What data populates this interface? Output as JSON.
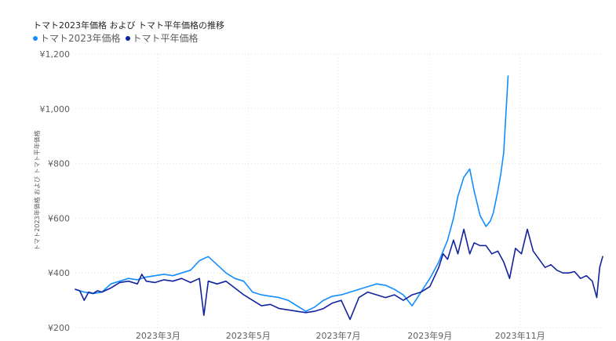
{
  "chart_data": {
    "type": "line",
    "title": "トマト2023年価格 および トマト平年価格の推移",
    "ylabel": "トマト2023年価格 および トマト平年価格",
    "xlabel": "",
    "ylim": [
      200,
      1200
    ],
    "yticks": [
      200,
      400,
      600,
      800,
      1000,
      1200
    ],
    "ytick_labels": [
      "¥200",
      "¥400",
      "¥600",
      "¥800",
      "¥1,000",
      "¥1,200"
    ],
    "xlim": [
      "2023-01-04",
      "2023-12-27"
    ],
    "xticks": [
      "2023-03-01",
      "2023-05-01",
      "2023-07-01",
      "2023-09-01",
      "2023-11-01"
    ],
    "xtick_labels": [
      "2023年3月",
      "2023年5月",
      "2023年7月",
      "2023年9月",
      "2023年11月"
    ],
    "grid": true,
    "legend_position": "top-left",
    "series": [
      {
        "name": "トマト2023年価格",
        "color": "#118DFF",
        "x": [
          "2023-01-04",
          "2023-01-10",
          "2023-01-16",
          "2023-01-22",
          "2023-01-28",
          "2023-02-03",
          "2023-02-09",
          "2023-02-15",
          "2023-02-21",
          "2023-02-27",
          "2023-03-05",
          "2023-03-11",
          "2023-03-17",
          "2023-03-23",
          "2023-03-29",
          "2023-04-04",
          "2023-04-10",
          "2023-04-16",
          "2023-04-22",
          "2023-04-28",
          "2023-05-04",
          "2023-05-10",
          "2023-05-16",
          "2023-05-22",
          "2023-05-28",
          "2023-06-03",
          "2023-06-09",
          "2023-06-15",
          "2023-06-21",
          "2023-06-27",
          "2023-07-03",
          "2023-07-09",
          "2023-07-15",
          "2023-07-21",
          "2023-07-27",
          "2023-08-02",
          "2023-08-08",
          "2023-08-14",
          "2023-08-20",
          "2023-08-26",
          "2023-09-01",
          "2023-09-07",
          "2023-09-13",
          "2023-09-17",
          "2023-09-20",
          "2023-09-24",
          "2023-09-28",
          "2023-10-01",
          "2023-10-05",
          "2023-10-09",
          "2023-10-12",
          "2023-10-14",
          "2023-10-17",
          "2023-10-19",
          "2023-10-21",
          "2023-10-24"
        ],
        "values": [
          340,
          330,
          325,
          330,
          360,
          370,
          380,
          375,
          385,
          390,
          395,
          390,
          400,
          410,
          445,
          460,
          430,
          400,
          380,
          370,
          330,
          320,
          315,
          310,
          300,
          280,
          260,
          275,
          300,
          315,
          320,
          330,
          340,
          350,
          360,
          355,
          340,
          320,
          280,
          330,
          380,
          440,
          520,
          600,
          680,
          750,
          780,
          700,
          610,
          570,
          590,
          620,
          700,
          760,
          840,
          1120
        ]
      },
      {
        "name": "トマト平年価格",
        "color": "#12239E",
        "x": [
          "2023-01-04",
          "2023-01-07",
          "2023-01-10",
          "2023-01-13",
          "2023-01-16",
          "2023-01-19",
          "2023-01-22",
          "2023-01-28",
          "2023-02-03",
          "2023-02-09",
          "2023-02-15",
          "2023-02-18",
          "2023-02-21",
          "2023-02-27",
          "2023-03-05",
          "2023-03-11",
          "2023-03-17",
          "2023-03-23",
          "2023-03-29",
          "2023-04-01",
          "2023-04-04",
          "2023-04-10",
          "2023-04-16",
          "2023-04-22",
          "2023-04-28",
          "2023-05-04",
          "2023-05-10",
          "2023-05-16",
          "2023-05-22",
          "2023-05-28",
          "2023-06-03",
          "2023-06-09",
          "2023-06-15",
          "2023-06-21",
          "2023-06-27",
          "2023-07-03",
          "2023-07-09",
          "2023-07-15",
          "2023-07-21",
          "2023-07-27",
          "2023-08-02",
          "2023-08-08",
          "2023-08-14",
          "2023-08-20",
          "2023-08-26",
          "2023-09-01",
          "2023-09-07",
          "2023-09-10",
          "2023-09-13",
          "2023-09-17",
          "2023-09-20",
          "2023-09-24",
          "2023-09-28",
          "2023-10-01",
          "2023-10-05",
          "2023-10-09",
          "2023-10-13",
          "2023-10-17",
          "2023-10-21",
          "2023-10-25",
          "2023-10-29",
          "2023-11-02",
          "2023-11-06",
          "2023-11-10",
          "2023-11-14",
          "2023-11-18",
          "2023-11-22",
          "2023-11-26",
          "2023-11-30",
          "2023-12-04",
          "2023-12-08",
          "2023-12-12",
          "2023-12-16",
          "2023-12-20",
          "2023-12-23",
          "2023-12-25",
          "2023-12-27"
        ],
        "values": [
          340,
          335,
          300,
          330,
          325,
          335,
          330,
          345,
          365,
          370,
          360,
          395,
          370,
          365,
          375,
          370,
          380,
          365,
          380,
          245,
          370,
          360,
          370,
          345,
          320,
          300,
          280,
          285,
          270,
          265,
          260,
          255,
          260,
          270,
          290,
          300,
          230,
          310,
          330,
          320,
          310,
          320,
          300,
          320,
          330,
          350,
          420,
          470,
          450,
          520,
          470,
          560,
          470,
          510,
          500,
          500,
          470,
          480,
          440,
          380,
          490,
          470,
          560,
          480,
          450,
          420,
          430,
          410,
          400,
          400,
          405,
          380,
          390,
          370,
          310,
          420,
          460
        ]
      }
    ]
  }
}
